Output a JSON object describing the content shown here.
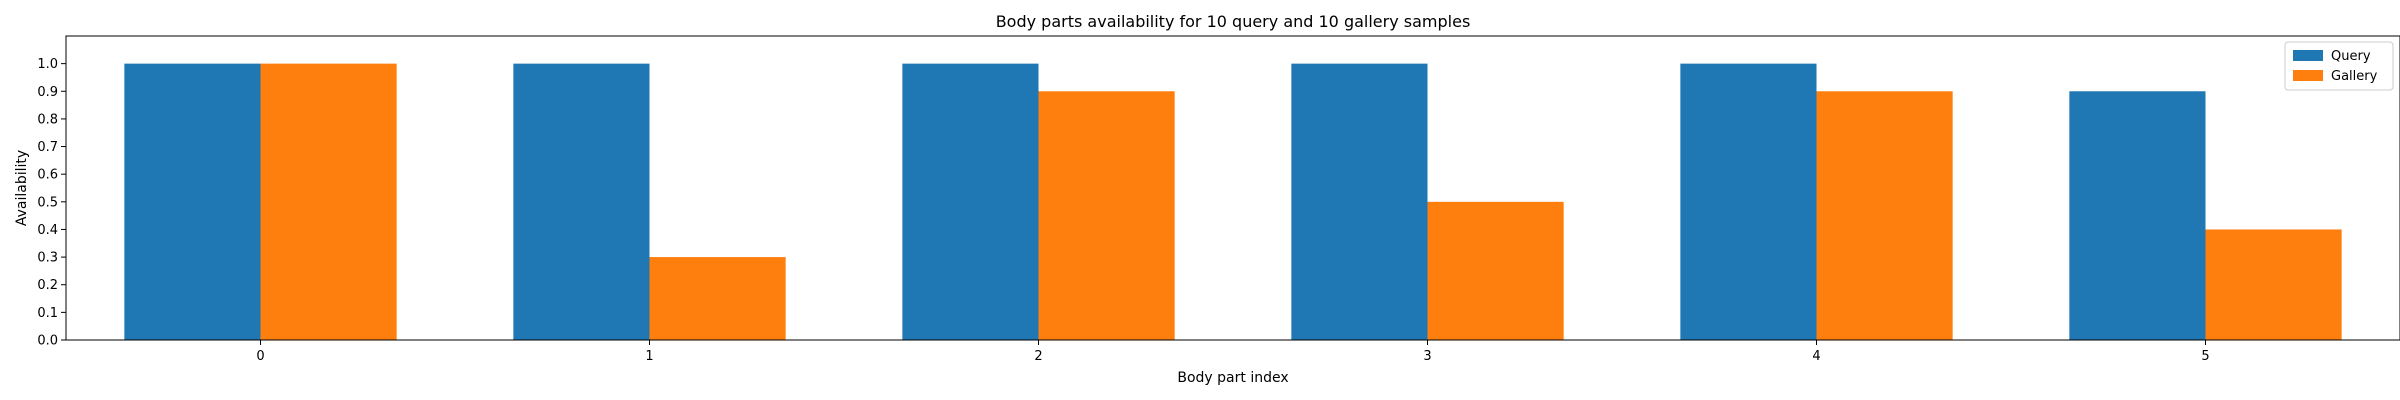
{
  "chart_data": {
    "type": "bar",
    "title": "Body parts availability for 10 query and 10 gallery samples",
    "xlabel": "Body part index",
    "ylabel": "Availability",
    "categories": [
      "0",
      "1",
      "2",
      "3",
      "4",
      "5"
    ],
    "series": [
      {
        "name": "Query",
        "color": "#1f77b4",
        "values": [
          1.0,
          1.0,
          1.0,
          1.0,
          1.0,
          0.9
        ]
      },
      {
        "name": "Gallery",
        "color": "#ff7f0e",
        "values": [
          1.0,
          0.3,
          0.9,
          0.5,
          0.9,
          0.4
        ]
      }
    ],
    "ylim": [
      0,
      1.1
    ],
    "yticks": [
      "0.0",
      "0.1",
      "0.2",
      "0.3",
      "0.4",
      "0.5",
      "0.6",
      "0.7",
      "0.8",
      "0.9",
      "1.0"
    ],
    "grid": false,
    "legend_position": "top-right"
  }
}
